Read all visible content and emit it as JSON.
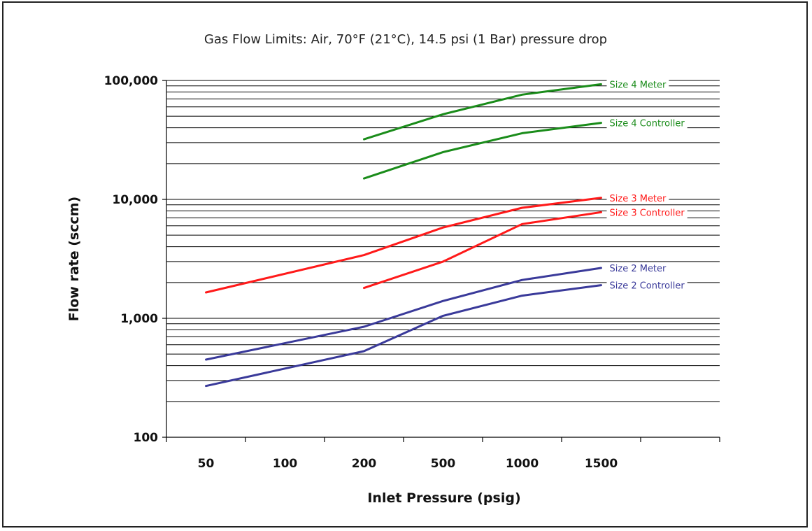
{
  "chart_data": {
    "type": "line",
    "title": "Gas Flow Limits: Air, 70°F (21°C), 14.5 psi (1 Bar) pressure drop",
    "xlabel": "Inlet Pressure (psig)",
    "ylabel": "Flow rate (sccm)",
    "categories": [
      "50",
      "100",
      "200",
      "500",
      "1000",
      "1500"
    ],
    "y_scale": "log",
    "ylim": [
      100,
      100000
    ],
    "y_ticks": [
      100,
      1000,
      10000,
      100000
    ],
    "y_tick_labels": [
      "100",
      "1,000",
      "10,000",
      "100,000"
    ],
    "grid": "horizontal",
    "series": [
      {
        "name": "Size 4 Meter",
        "color": "#1a8c1a",
        "points": [
          [
            200,
            32000
          ],
          [
            500,
            52000
          ],
          [
            1000,
            76000
          ],
          [
            1500,
            93000
          ]
        ]
      },
      {
        "name": "Size 4 Controller",
        "color": "#1a8c1a",
        "points": [
          [
            200,
            15000
          ],
          [
            500,
            25000
          ],
          [
            1000,
            36000
          ],
          [
            1500,
            44000
          ]
        ]
      },
      {
        "name": "Size 3 Meter",
        "color": "#ff1a1a",
        "points": [
          [
            50,
            1650
          ],
          [
            200,
            3400
          ],
          [
            500,
            5800
          ],
          [
            1000,
            8500
          ],
          [
            1500,
            10300
          ]
        ]
      },
      {
        "name": "Size 3 Controller",
        "color": "#ff1a1a",
        "points": [
          [
            200,
            1800
          ],
          [
            500,
            3000
          ],
          [
            1000,
            6200
          ],
          [
            1500,
            7800
          ]
        ]
      },
      {
        "name": "Size 2 Meter",
        "color": "#3a3a9a",
        "points": [
          [
            50,
            450
          ],
          [
            200,
            850
          ],
          [
            500,
            1400
          ],
          [
            1000,
            2100
          ],
          [
            1500,
            2650
          ]
        ]
      },
      {
        "name": "Size 2 Controller",
        "color": "#3a3a9a",
        "points": [
          [
            50,
            270
          ],
          [
            200,
            530
          ],
          [
            500,
            1050
          ],
          [
            1000,
            1550
          ],
          [
            1500,
            1900
          ]
        ]
      }
    ]
  }
}
